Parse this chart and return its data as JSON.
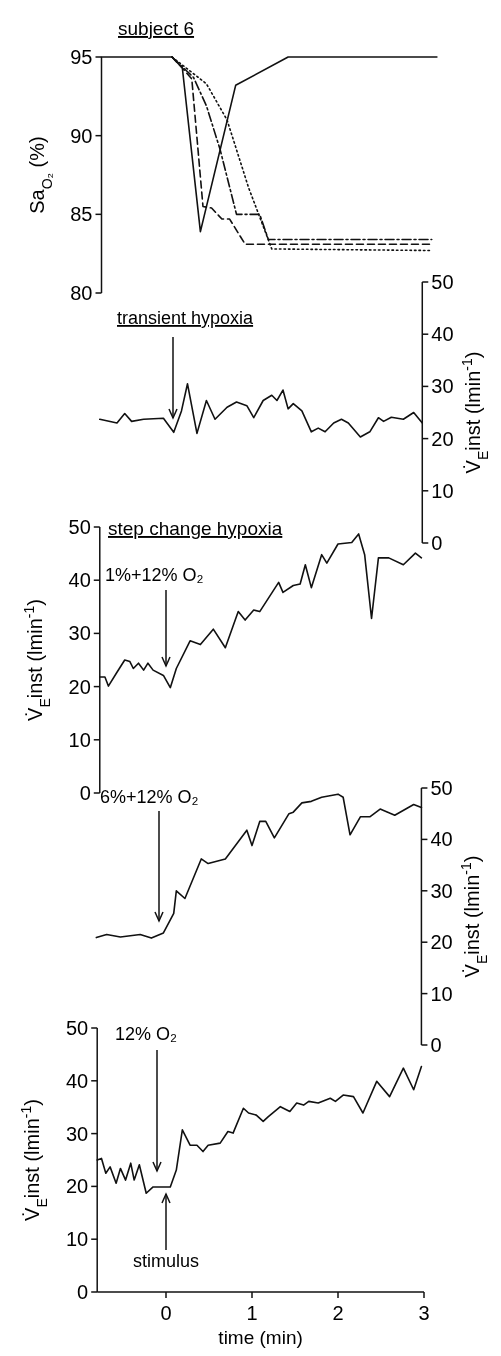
{
  "chart_data": [
    {
      "type": "line",
      "title": "subject 6",
      "ylabel": "Sa$_{O₂}$ (%)",
      "ylim": [
        80,
        95
      ],
      "yticks": [
        80,
        85,
        90,
        95
      ],
      "xticks": [
        0,
        1,
        2,
        3
      ],
      "tick_labels": "y",
      "series": [
        {
          "color": "#111111",
          "line_style": "solid",
          "x": [
            -0.75,
            0.07,
            0.19,
            0.4,
            0.81,
            1.42,
            3.15
          ],
          "values": [
            95,
            95,
            94.3,
            83.9,
            93.2,
            95,
            95
          ]
        },
        {
          "color": "#111111",
          "line_style": "dashed",
          "x": [
            0.07,
            0.19,
            0.3,
            0.43,
            0.53,
            0.65,
            0.74,
            0.92,
            3.07
          ],
          "values": [
            95,
            94.3,
            93.6,
            85.5,
            85.4,
            84.7,
            84.7,
            83.1,
            83.1
          ]
        },
        {
          "color": "#111111",
          "line_style": "dashdot",
          "x": [
            0.07,
            0.32,
            0.47,
            0.63,
            0.82,
            1.09,
            1.19,
            3.09
          ],
          "values": [
            95,
            93.7,
            91.9,
            89.1,
            85,
            85,
            83.4,
            83.4
          ]
        },
        {
          "color": "#111111",
          "line_style": "dotted",
          "x": [
            0.07,
            0.47,
            0.71,
            0.96,
            1.23,
            3.07
          ],
          "values": [
            95,
            93.3,
            91,
            86.7,
            82.8,
            82.7
          ]
        }
      ]
    },
    {
      "type": "line",
      "y2label": "V̇$_{E}$inst (lmin$^{-1}$)",
      "y2lim": [
        0,
        50
      ],
      "y2ticks": [
        0,
        10,
        20,
        30,
        40,
        50
      ],
      "xticks": [
        0,
        1,
        2,
        3
      ],
      "tick_labels": "y",
      "annotations": [
        "transient hypoxia"
      ],
      "x": [
        -0.77,
        -0.57,
        -0.48,
        -0.4,
        -0.26,
        -0.03,
        0.09,
        0.18,
        0.25,
        0.36,
        0.47,
        0.57,
        0.71,
        0.82,
        0.94,
        1.02,
        1.13,
        1.23,
        1.29,
        1.36,
        1.42,
        1.48,
        1.58,
        1.69,
        1.77,
        1.85,
        1.95,
        2.04,
        2.12,
        2.26,
        2.37,
        2.47,
        2.53,
        2.62,
        2.76,
        2.88,
        2.98
      ],
      "series": [
        {
          "color": "#111111",
          "axis": "y2",
          "values": [
            23.7,
            23,
            24.8,
            23.3,
            23.7,
            23.9,
            21.2,
            25.3,
            30.5,
            21,
            27.3,
            23.7,
            26,
            27,
            26.3,
            24,
            27.3,
            28.3,
            27.3,
            29.3,
            25.7,
            26.7,
            25.3,
            21.3,
            22,
            21.3,
            23,
            23.7,
            23,
            20.3,
            21.3,
            24,
            23.3,
            24.1,
            23.7,
            25,
            23
          ]
        }
      ]
    },
    {
      "type": "line",
      "title": "step change hypoxia",
      "ylabel": "V̇$_{E}$inst (lmin$^{-1}$)",
      "ylim": [
        0,
        50
      ],
      "yticks": [
        0,
        10,
        20,
        30,
        40,
        50
      ],
      "xticks": [
        0,
        1,
        2,
        3
      ],
      "tick_labels": "y",
      "annotations": [
        "1%+12% O₂"
      ],
      "x": [
        -0.77,
        -0.71,
        -0.67,
        -0.57,
        -0.48,
        -0.42,
        -0.38,
        -0.32,
        -0.26,
        -0.21,
        -0.15,
        -0.03,
        0.05,
        0.12,
        0.28,
        0.4,
        0.55,
        0.69,
        0.84,
        0.92,
        1.02,
        1.09,
        1.31,
        1.36,
        1.48,
        1.56,
        1.62,
        1.69,
        1.81,
        1.87,
        2,
        2.16,
        2.24,
        2.31,
        2.39,
        2.47,
        2.59,
        2.76,
        2.9,
        2.97
      ],
      "series": [
        {
          "color": "#111111",
          "values": [
            21.8,
            21.8,
            20.1,
            22.7,
            25,
            24.7,
            23.4,
            24.4,
            23.1,
            24.4,
            23.1,
            22.1,
            19.8,
            23.4,
            28.6,
            27.9,
            30.8,
            27.3,
            34.1,
            32.5,
            34.4,
            34.1,
            39.6,
            37.7,
            39,
            39.3,
            42.9,
            38.6,
            44.8,
            43.2,
            46.8,
            47.1,
            48.7,
            44.8,
            32.8,
            44.2,
            44.2,
            42.9,
            45.1,
            44.2
          ]
        }
      ]
    },
    {
      "type": "line",
      "y2label": "V̇$_{E}$inst (lmin$^{-1}$)",
      "y2lim": [
        0,
        50
      ],
      "y2ticks": [
        0,
        10,
        20,
        30,
        40,
        50
      ],
      "xticks": [
        0,
        1,
        2,
        3
      ],
      "tick_labels": "y",
      "annotations": [
        "6%+12% O₂"
      ],
      "x": [
        -0.81,
        -0.69,
        -0.53,
        -0.3,
        -0.17,
        -0.03,
        0.09,
        0.12,
        0.22,
        0.41,
        0.49,
        0.69,
        0.94,
        1,
        1.09,
        1.16,
        1.26,
        1.43,
        1.48,
        1.58,
        1.69,
        1.81,
        2,
        2.06,
        2.14,
        2.26,
        2.37,
        2.49,
        2.66,
        2.88,
        2.97
      ],
      "series": [
        {
          "color": "#111111",
          "axis": "y2",
          "values": [
            20.9,
            21.5,
            21,
            21.5,
            20.8,
            21.8,
            25.6,
            30,
            28.5,
            36.2,
            35.3,
            36.2,
            41.8,
            38.8,
            43.5,
            43.5,
            40.3,
            45,
            45.3,
            47.1,
            47.4,
            48.2,
            48.8,
            48.2,
            40.9,
            44.4,
            44.4,
            45.9,
            44.7,
            46.8,
            46.2
          ]
        }
      ]
    },
    {
      "type": "line",
      "ylabel": "V̇$_{E}$inst (lmin$^{-1}$)",
      "xlabel": "time (min)",
      "xlim": [
        -0.8,
        3
      ],
      "xticks": [
        0,
        1,
        2,
        3
      ],
      "ylim": [
        0,
        50
      ],
      "yticks": [
        0,
        10,
        20,
        30,
        40,
        50
      ],
      "annotations": [
        "12% O₂",
        "stimulus"
      ],
      "x": [
        -0.8,
        -0.75,
        -0.7,
        -0.65,
        -0.58,
        -0.53,
        -0.47,
        -0.41,
        -0.37,
        -0.31,
        -0.23,
        -0.15,
        0.05,
        0.12,
        0.19,
        0.28,
        0.36,
        0.43,
        0.49,
        0.63,
        0.72,
        0.78,
        0.9,
        0.96,
        1.05,
        1.13,
        1.19,
        1.33,
        1.44,
        1.52,
        1.6,
        1.66,
        1.77,
        1.91,
        1.97,
        2.06,
        2.18,
        2.29,
        2.45,
        2.6,
        2.76,
        2.88,
        2.97
      ],
      "series": [
        {
          "color": "#111111",
          "values": [
            25,
            25.3,
            22.5,
            23.7,
            20.6,
            23.4,
            21.2,
            24.4,
            21.2,
            24.1,
            18.7,
            19.9,
            19.9,
            23.1,
            30.7,
            27.8,
            27.8,
            26.6,
            27.8,
            28.2,
            30.4,
            30.1,
            34.8,
            33.9,
            33.5,
            32.3,
            33.2,
            35.1,
            34.2,
            35.8,
            35.4,
            36.1,
            35.8,
            36.7,
            36.1,
            37.3,
            37,
            33.9,
            39.9,
            37,
            42.4,
            38.3,
            42.7
          ]
        }
      ]
    }
  ]
}
